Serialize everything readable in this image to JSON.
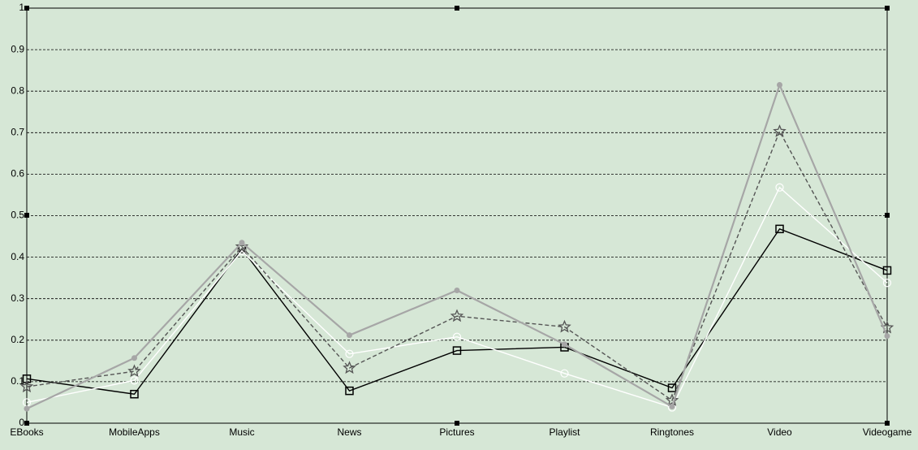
{
  "chart_data": {
    "type": "line",
    "categories": [
      "EBooks",
      "MobileApps",
      "Music",
      "News",
      "Pictures",
      "Playlist",
      "Ringtones",
      "Video",
      "Videogame"
    ],
    "series": [
      {
        "color": "#000000",
        "marker": "square",
        "dashed": false,
        "values": [
          0.107,
          0.07,
          0.42,
          0.078,
          0.175,
          0.183,
          0.085,
          0.468,
          0.368
        ]
      },
      {
        "color": "#ffffff",
        "marker": "circle",
        "dashed": false,
        "values": [
          0.05,
          0.103,
          0.415,
          0.167,
          0.208,
          0.12,
          0.038,
          0.568,
          0.338
        ]
      },
      {
        "color": "#555555",
        "marker": "star",
        "dashed": true,
        "values": [
          0.088,
          0.125,
          0.425,
          0.133,
          0.258,
          0.232,
          0.055,
          0.703,
          0.23
        ]
      },
      {
        "color": "#a6a6a6",
        "marker": "dot",
        "dashed": false,
        "values": [
          0.035,
          0.157,
          0.435,
          0.212,
          0.32,
          0.19,
          0.04,
          0.815,
          0.21
        ]
      }
    ],
    "ylim": [
      0,
      1
    ],
    "yticks": [
      0,
      0.1,
      0.2,
      0.3,
      0.4,
      0.5,
      0.6,
      0.7,
      0.8,
      0.9,
      1
    ],
    "grid": true
  }
}
